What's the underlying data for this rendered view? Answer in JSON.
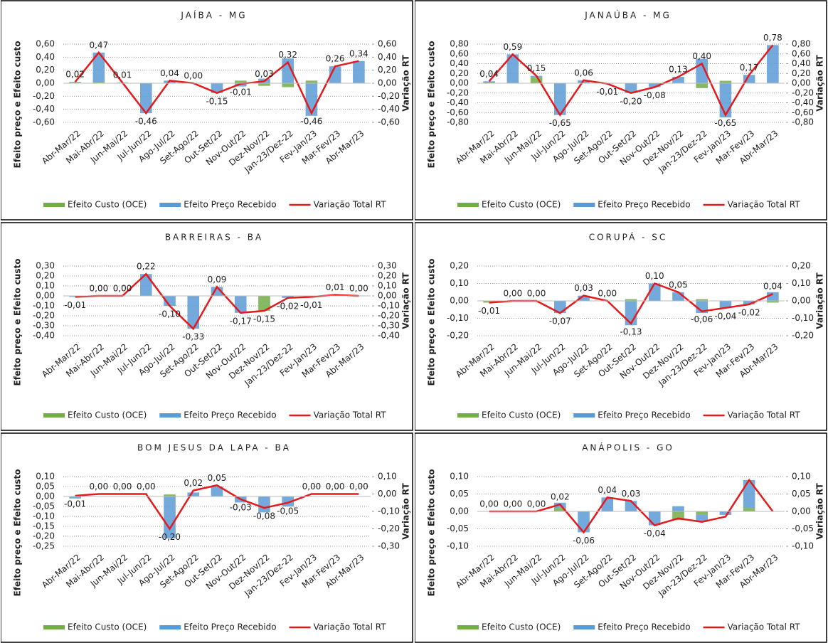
{
  "chart_data": [
    {
      "type": "bar",
      "title": "JAÍBA - MG",
      "y_label": "Efeito preço e Efeito custo",
      "y2_label": "Variação RT",
      "categories": [
        "Abr-Mar/22",
        "Mai-Abr/22",
        "Jun-Mai/22",
        "Jul-Jun/22",
        "Ago-Jul/22",
        "Set-Ago/22",
        "Out-Set/22",
        "Nov-Out/22",
        "Dez-Nov/22",
        "Jan-23/Dez-22",
        "Fev-Jan/23",
        "Mar-Fev/23",
        "Abr-Mar/23"
      ],
      "ylim": [
        -0.6,
        0.6
      ],
      "yticks": [
        {
          "value": -0.6,
          "label": "-0,60"
        },
        {
          "value": -0.4,
          "label": "-0,40"
        },
        {
          "value": -0.2,
          "label": "-0,20"
        },
        {
          "value": 0,
          "label": "0,00"
        },
        {
          "value": 0.2,
          "label": "0,20"
        },
        {
          "value": 0.4,
          "label": "0,40"
        },
        {
          "value": 0.6,
          "label": "0,60"
        }
      ],
      "y2lim": [
        -0.6,
        0.6
      ],
      "y2ticks": [
        {
          "value": -0.6,
          "label": "-0,60"
        },
        {
          "value": -0.4,
          "label": "-0,40"
        },
        {
          "value": -0.2,
          "label": "-0,20"
        },
        {
          "value": 0,
          "label": "0,00"
        },
        {
          "value": 0.2,
          "label": "0,20"
        },
        {
          "value": 0.4,
          "label": "0,40"
        },
        {
          "value": 0.6,
          "label": "0,60"
        }
      ],
      "grid": true,
      "series": [
        {
          "name": "Efeito Custo (OCE)",
          "color": "#70ad47",
          "type": "bar",
          "values": [
            0.01,
            0.02,
            0,
            0,
            0,
            0,
            0,
            0.04,
            -0.04,
            -0.06,
            0.04,
            0,
            0
          ]
        },
        {
          "name": "Efeito Preço Recebido",
          "color": "#5b9bd5",
          "type": "bar",
          "values": [
            0.01,
            0.45,
            0.01,
            -0.46,
            0.04,
            0,
            -0.15,
            -0.05,
            0.07,
            0.38,
            -0.5,
            0.26,
            0.34
          ]
        },
        {
          "name": "Variação Total RT",
          "color": "#e41a1c",
          "type": "line",
          "axis": "y2",
          "values": [
            0.02,
            0.47,
            0.01,
            -0.46,
            0.04,
            0,
            -0.15,
            -0.01,
            0.03,
            0.32,
            -0.46,
            0.26,
            0.34
          ],
          "value_labels": [
            "0,02",
            "0,47",
            "0,01",
            "-0,46",
            "0,04",
            "0,00",
            "-0,15",
            "-0,01",
            "0,03",
            "0,32",
            "-0,46",
            "0,26",
            "0,34"
          ]
        }
      ]
    },
    {
      "type": "bar",
      "title": "JANAÚBA - MG",
      "y_label": "Efeito preço e Efeito custo",
      "y2_label": "Variação RT",
      "categories": [
        "Abr-Mar/22",
        "Mai-Abr/22",
        "Jun-Mai/22",
        "Jul-Jun/22",
        "Ago-Jul/22",
        "Set-Ago/22",
        "Out-Set/22",
        "Nov-Out/22",
        "Dez-Nov/22",
        "Jan-23/Dez-22",
        "Fev-Jan/23",
        "Mar-Fev/23",
        "Abr-Mar/23"
      ],
      "ylim": [
        -0.8,
        0.8
      ],
      "yticks": [
        {
          "value": -0.8,
          "label": "-0,80"
        },
        {
          "value": -0.6,
          "label": "-0,60"
        },
        {
          "value": -0.4,
          "label": "-0,40"
        },
        {
          "value": -0.2,
          "label": "-0,20"
        },
        {
          "value": 0,
          "label": "0,00"
        },
        {
          "value": 0.2,
          "label": "0,20"
        },
        {
          "value": 0.4,
          "label": "0,40"
        },
        {
          "value": 0.6,
          "label": "0,60"
        },
        {
          "value": 0.8,
          "label": "0,80"
        }
      ],
      "y2lim": [
        -0.8,
        0.8
      ],
      "y2ticks": [
        {
          "value": -0.8,
          "label": "-0,80"
        },
        {
          "value": -0.6,
          "label": "-0,60"
        },
        {
          "value": -0.4,
          "label": "-0,40"
        },
        {
          "value": -0.2,
          "label": "-0,20"
        },
        {
          "value": 0,
          "label": "0,00"
        },
        {
          "value": 0.2,
          "label": "0,20"
        },
        {
          "value": 0.4,
          "label": "0,40"
        },
        {
          "value": 0.6,
          "label": "0,60"
        },
        {
          "value": 0.8,
          "label": "0,80"
        }
      ],
      "grid": true,
      "series": [
        {
          "name": "Efeito Custo (OCE)",
          "color": "#70ad47",
          "type": "bar",
          "values": [
            0.03,
            0,
            0.12,
            0,
            0,
            0,
            0,
            0,
            0,
            -0.1,
            0.05,
            0,
            0
          ]
        },
        {
          "name": "Efeito Preço Recebido",
          "color": "#5b9bd5",
          "type": "bar",
          "values": [
            0.01,
            0.59,
            0.03,
            -0.65,
            0.06,
            -0.01,
            -0.2,
            -0.08,
            0.13,
            0.5,
            -0.7,
            0.17,
            0.78
          ]
        },
        {
          "name": "Variação Total RT",
          "color": "#e41a1c",
          "type": "line",
          "axis": "y2",
          "values": [
            0.04,
            0.59,
            0.15,
            -0.65,
            0.06,
            -0.01,
            -0.2,
            -0.08,
            0.13,
            0.4,
            -0.65,
            0.17,
            0.78
          ],
          "value_labels": [
            "0,04",
            "0,59",
            "0,15",
            "-0,65",
            "0,06",
            "-0,01",
            "-0,20",
            "-0,08",
            "0,13",
            "0,40",
            "-0,65",
            "0,17",
            "0,78"
          ]
        }
      ]
    },
    {
      "type": "bar",
      "title": "BARREIRAS - BA",
      "y_label": "Efeito preço e Efeito custo",
      "y2_label": "Variação RT",
      "categories": [
        "Abr-Mar/22",
        "Mai-Abr/22",
        "Jun-Mai/22",
        "Jul-Jun/22",
        "Ago-Jul/22",
        "Set-Ago/22",
        "Out-Set/22",
        "Nov-Out/22",
        "Dez-Nov/22",
        "Jan-23/Dez-22",
        "Fev-Jan/23",
        "Mar-Fev/23",
        "Abr-Mar/23"
      ],
      "ylim": [
        -0.4,
        0.3
      ],
      "yticks": [
        {
          "value": -0.4,
          "label": "-0,40"
        },
        {
          "value": -0.3,
          "label": "-0,30"
        },
        {
          "value": -0.2,
          "label": "-0,20"
        },
        {
          "value": -0.1,
          "label": "-0,10"
        },
        {
          "value": 0,
          "label": "0,00"
        },
        {
          "value": 0.1,
          "label": "0,10"
        },
        {
          "value": 0.2,
          "label": "0,20"
        },
        {
          "value": 0.3,
          "label": "0,30"
        }
      ],
      "y2lim": [
        -0.4,
        0.3
      ],
      "y2ticks": [
        {
          "value": -0.4,
          "label": "-0,40"
        },
        {
          "value": -0.3,
          "label": "-0,30"
        },
        {
          "value": -0.2,
          "label": "-0,20"
        },
        {
          "value": -0.1,
          "label": "-0,10"
        },
        {
          "value": 0,
          "label": "0,00"
        },
        {
          "value": 0.1,
          "label": "0,10"
        },
        {
          "value": 0.2,
          "label": "0,20"
        },
        {
          "value": 0.3,
          "label": "0,30"
        }
      ],
      "grid": true,
      "series": [
        {
          "name": "Efeito Custo (OCE)",
          "color": "#70ad47",
          "type": "bar",
          "values": [
            0,
            0,
            0,
            0,
            0,
            0,
            0,
            0,
            -0.15,
            0,
            0,
            0,
            0
          ]
        },
        {
          "name": "Efeito Preço Recebido",
          "color": "#5b9bd5",
          "type": "bar",
          "values": [
            -0.01,
            0,
            0,
            0.22,
            -0.1,
            -0.33,
            0.09,
            -0.17,
            0,
            -0.02,
            -0.01,
            0.01,
            0
          ]
        },
        {
          "name": "Variação Total RT",
          "color": "#e41a1c",
          "type": "line",
          "axis": "y2",
          "values": [
            -0.01,
            0,
            0,
            0.22,
            -0.1,
            -0.33,
            0.09,
            -0.17,
            -0.15,
            -0.02,
            -0.01,
            0.01,
            0
          ],
          "value_labels": [
            "-0,01",
            "0,00",
            "0,00",
            "0,22",
            "-0,10",
            "-0,33",
            "0,09",
            "-0,17",
            "-0,15",
            "-0,02",
            "-0,01",
            "0,01",
            "0,00"
          ]
        }
      ]
    },
    {
      "type": "bar",
      "title": "CORUPÁ - SC",
      "y_label": "Efeito preço e Efeito custo",
      "y2_label": "Variação RT",
      "categories": [
        "Abr-Mar/22",
        "Mai-Abr/22",
        "Jun-Mai/22",
        "Jul-Jun/22",
        "Ago-Jul/22",
        "Set-Ago/22",
        "Out-Set/22",
        "Nov-Out/22",
        "Dez-Nov/22",
        "Jan-23/Dez-22",
        "Fev-Jan/23",
        "Mar-Fev/23",
        "Abr-Mar/23"
      ],
      "ylim": [
        -0.2,
        0.2
      ],
      "yticks": [
        {
          "value": -0.2,
          "label": "-0,20"
        },
        {
          "value": -0.1,
          "label": "-0,10"
        },
        {
          "value": 0,
          "label": "0,00"
        },
        {
          "value": 0.1,
          "label": "0,10"
        },
        {
          "value": 0.2,
          "label": "0,20"
        }
      ],
      "y2lim": [
        -0.2,
        0.2
      ],
      "y2ticks": [
        {
          "value": -0.2,
          "label": "-0,20"
        },
        {
          "value": -0.1,
          "label": "-0,10"
        },
        {
          "value": 0,
          "label": "0,00"
        },
        {
          "value": 0.1,
          "label": "0,10"
        },
        {
          "value": 0.2,
          "label": "0,20"
        }
      ],
      "grid": true,
      "series": [
        {
          "name": "Efeito Custo (OCE)",
          "color": "#70ad47",
          "type": "bar",
          "values": [
            -0.01,
            0,
            0,
            0,
            0,
            0,
            0.01,
            0,
            0,
            0.01,
            0,
            0,
            -0.01
          ]
        },
        {
          "name": "Efeito Preço Recebido",
          "color": "#5b9bd5",
          "type": "bar",
          "values": [
            0,
            0,
            0,
            -0.07,
            0.03,
            0,
            -0.14,
            0.1,
            0.05,
            -0.07,
            -0.04,
            -0.02,
            0.05
          ]
        },
        {
          "name": "Variação Total RT",
          "color": "#e41a1c",
          "type": "line",
          "axis": "y2",
          "values": [
            -0.01,
            0,
            0,
            -0.07,
            0.03,
            0,
            -0.13,
            0.1,
            0.05,
            -0.06,
            -0.04,
            -0.02,
            0.04
          ],
          "value_labels": [
            "-0,01",
            "0,00",
            "0,00",
            "-0,07",
            "0,03",
            "0,00",
            "-0,13",
            "0,10",
            "0,05",
            "-0,06",
            "-0,04",
            "-0,02",
            "0,04"
          ]
        }
      ]
    },
    {
      "type": "bar",
      "title": "BOM JESUS DA LAPA - BA",
      "y_label": "Efeito preço e Efeito custo",
      "y2_label": "Variação RT",
      "categories": [
        "Abr-Mar/22",
        "Mai-Abr/22",
        "Jun-Mai/22",
        "Jul-Jun/22",
        "Ago-Jul/22",
        "Set-Ago/22",
        "Out-Set/22",
        "Nov-Out/22",
        "Dez-Nov/22",
        "Jan-23/Dez-22",
        "Fev-Jan/23",
        "Mar-Fev/23",
        "Abr-Mar/23"
      ],
      "ylim": [
        -0.25,
        0.1
      ],
      "yticks": [
        {
          "value": -0.25,
          "label": "-0,25"
        },
        {
          "value": -0.2,
          "label": "-0,20"
        },
        {
          "value": -0.15,
          "label": "-0,15"
        },
        {
          "value": -0.1,
          "label": "-0,10"
        },
        {
          "value": -0.05,
          "label": "-0,05"
        },
        {
          "value": 0,
          "label": "0,00"
        },
        {
          "value": 0.05,
          "label": "0,05"
        },
        {
          "value": 0.1,
          "label": "0,10"
        }
      ],
      "y2lim": [
        -0.3,
        0.1
      ],
      "y2ticks": [
        {
          "value": -0.3,
          "label": "-0,30"
        },
        {
          "value": -0.2,
          "label": "-0,20"
        },
        {
          "value": -0.1,
          "label": "-0,10"
        },
        {
          "value": 0,
          "label": "0,00"
        },
        {
          "value": 0.1,
          "label": "0,10"
        }
      ],
      "grid": true,
      "series": [
        {
          "name": "Efeito Custo (OCE)",
          "color": "#70ad47",
          "type": "bar",
          "values": [
            0,
            0,
            0,
            0,
            0.01,
            0,
            0,
            0,
            0,
            0,
            0,
            0,
            0
          ]
        },
        {
          "name": "Efeito Preço Recebido",
          "color": "#5b9bd5",
          "type": "bar",
          "values": [
            -0.01,
            0,
            0,
            0,
            -0.21,
            0.02,
            0.05,
            -0.03,
            -0.08,
            -0.05,
            0,
            0,
            0
          ]
        },
        {
          "name": "Variação Total RT",
          "color": "#e41a1c",
          "type": "line",
          "axis": "y2",
          "values": [
            -0.01,
            0,
            0,
            0,
            -0.2,
            0.02,
            0.05,
            -0.03,
            -0.08,
            -0.05,
            0,
            0,
            0
          ],
          "value_labels": [
            "-0,01",
            "0,00",
            "0,00",
            "0,00",
            "-0,20",
            "0,02",
            "0,05",
            "-0,03",
            "-0,08",
            "-0,05",
            "0,00",
            "0,00",
            "0,00"
          ]
        }
      ]
    },
    {
      "type": "bar",
      "title": "ANÁPOLIS - GO",
      "y_label": "Efeito preço e Efeito custo",
      "y2_label": "Variação RT",
      "categories": [
        "Abr-Mar/22",
        "Mai-Abr/22",
        "Jun-Mai/22",
        "Jul-Jun/22",
        "Ago-Jul/22",
        "Set-Ago/22",
        "Out-Set/22",
        "Nov-Out/22",
        "Dez-Nov/22",
        "Jan-23/Dez-22",
        "Fev-Jan/23",
        "Mar-Fev/23",
        "Abr-Mar/23"
      ],
      "ylim": [
        -0.1,
        0.1
      ],
      "yticks": [
        {
          "value": -0.1,
          "label": "-0,10"
        },
        {
          "value": -0.05,
          "label": "-0,05"
        },
        {
          "value": 0,
          "label": "0,00"
        },
        {
          "value": 0.05,
          "label": "0,05"
        },
        {
          "value": 0.1,
          "label": "0,10"
        }
      ],
      "y2lim": [
        -0.1,
        0.1
      ],
      "y2ticks": [
        {
          "value": -0.1,
          "label": "-0,10"
        },
        {
          "value": -0.05,
          "label": "-0,05"
        },
        {
          "value": 0,
          "label": "0,00"
        },
        {
          "value": 0.05,
          "label": "0,05"
        },
        {
          "value": 0.1,
          "label": "0,10"
        }
      ],
      "grid": true,
      "series": [
        {
          "name": "Efeito Custo (OCE)",
          "color": "#70ad47",
          "type": "bar",
          "values": [
            0,
            0,
            0,
            0.01,
            0,
            0,
            0,
            0,
            -0.025,
            -0.01,
            0,
            0.01,
            0
          ]
        },
        {
          "name": "Efeito Preço Recebido",
          "color": "#5b9bd5",
          "type": "bar",
          "values": [
            0,
            0,
            0,
            0.015,
            -0.06,
            0.04,
            0.03,
            -0.04,
            0.015,
            -0.02,
            -0.01,
            0.08,
            0
          ]
        },
        {
          "name": "Variação Total RT",
          "color": "#e41a1c",
          "type": "line",
          "axis": "y2",
          "values": [
            0,
            0,
            0,
            0.02,
            -0.06,
            0.04,
            0.03,
            -0.04,
            -0.02,
            -0.03,
            -0.015,
            0.09,
            0
          ],
          "value_labels": [
            "0,00",
            "0,00",
            "0,00",
            "0,02",
            "-0,06",
            "0,04",
            "0,03",
            "-0,04",
            null,
            null,
            null,
            null,
            null
          ]
        }
      ]
    }
  ]
}
